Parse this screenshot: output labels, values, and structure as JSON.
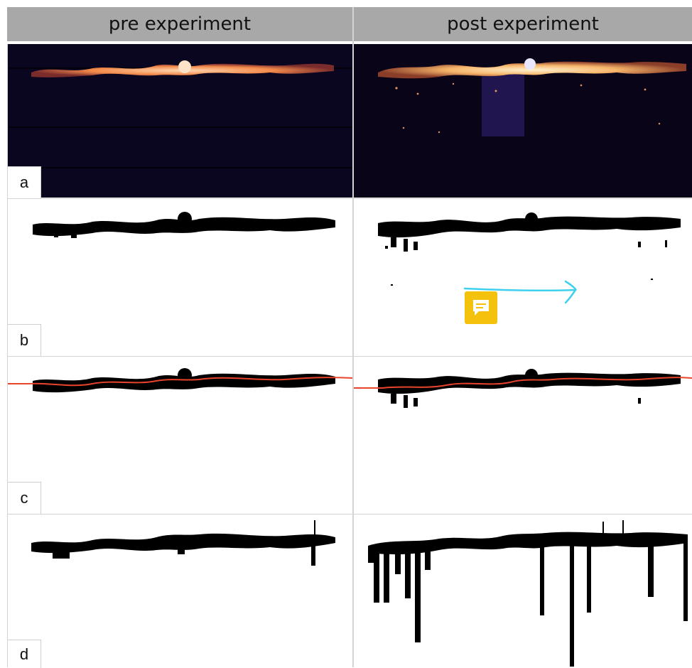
{
  "header": {
    "pre": "pre experiment",
    "post": "post experiment"
  },
  "rows": [
    {
      "label": "a"
    },
    {
      "label": "b"
    },
    {
      "label": "c"
    },
    {
      "label": "d"
    }
  ],
  "icons": {
    "comment": "comment-icon",
    "arrow": "arrow-annotation-icon"
  },
  "colors": {
    "header_bg": "#a8a8a8",
    "fluor_bg": "#0b0620",
    "fluor_band": "#f2a46b",
    "centerline": "#e8442c",
    "note": "#f4c20d",
    "pen": "#3fd0f0"
  }
}
